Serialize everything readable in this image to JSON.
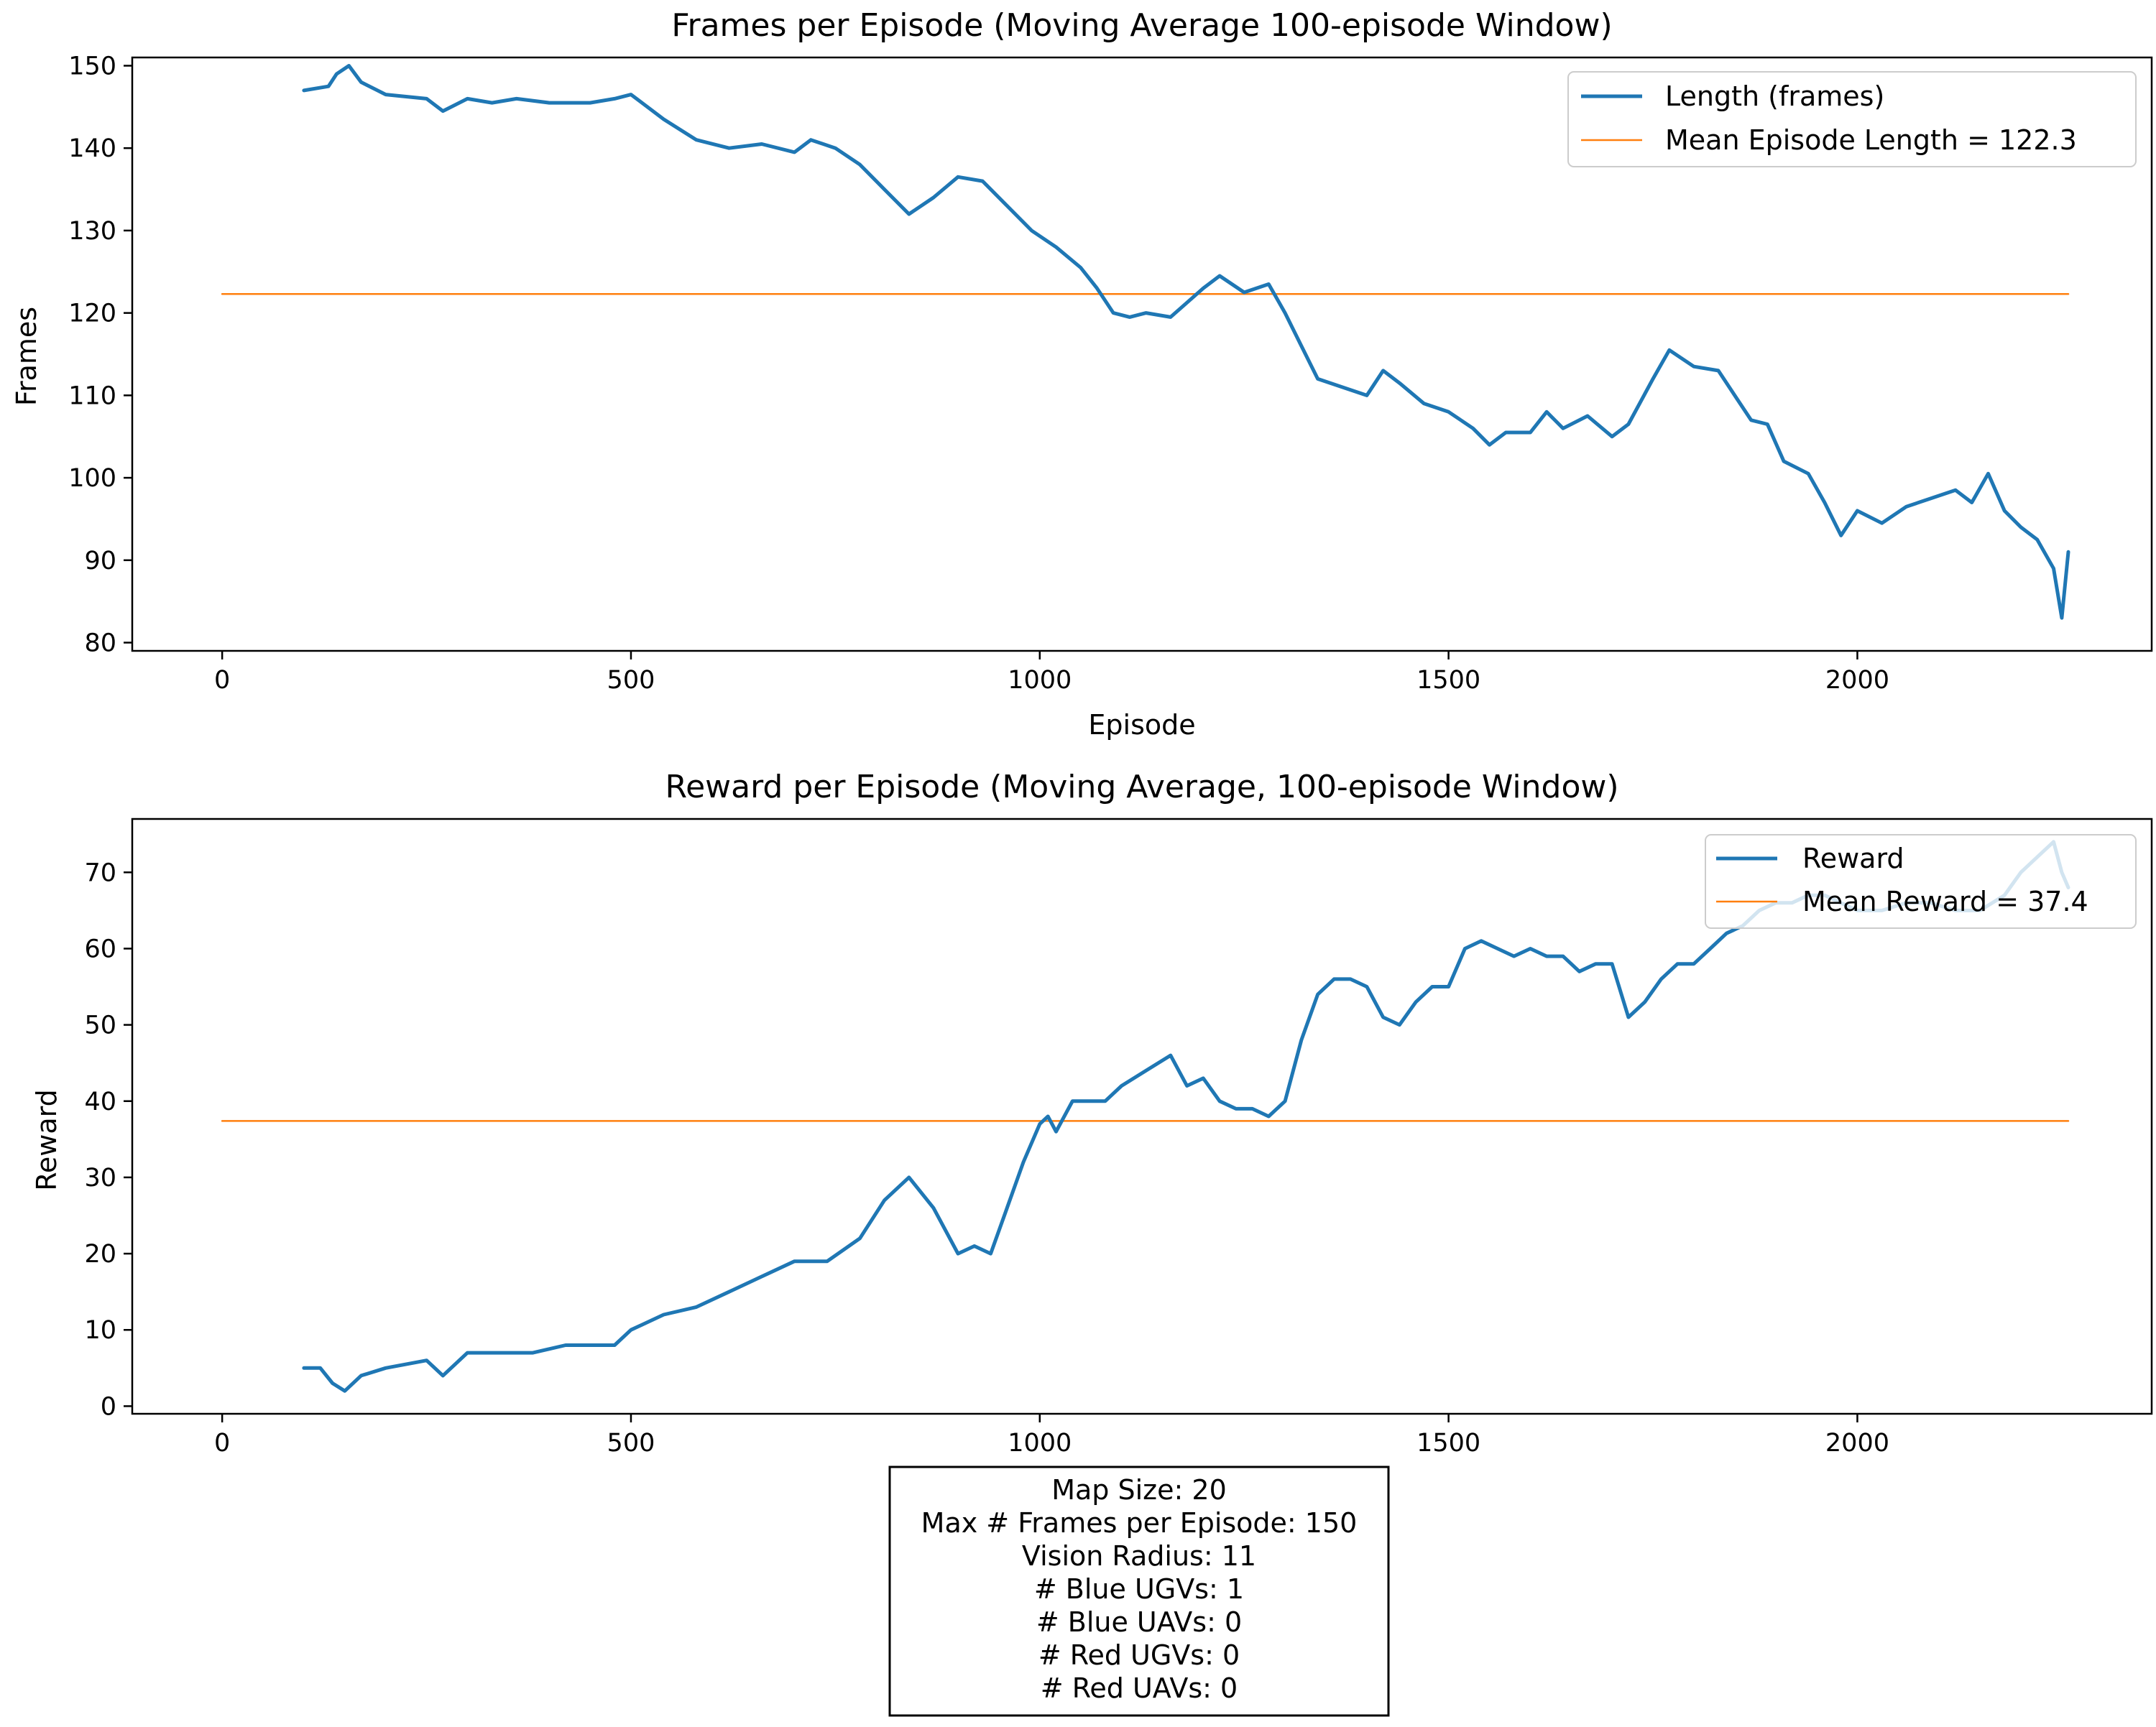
{
  "colors": {
    "series": "#1f77b4",
    "mean": "#ff7f0e",
    "axes": "#000000",
    "background": "#ffffff"
  },
  "chart_data": [
    {
      "type": "line",
      "title": "Frames per Episode (Moving Average 100-episode Window)",
      "xlabel": "Episode",
      "ylabel": "Frames",
      "xlim": [
        -110,
        2360
      ],
      "ylim": [
        79,
        151
      ],
      "xticks": [
        "0",
        "500",
        "1000",
        "1500",
        "2000"
      ],
      "yticks": [
        "80",
        "90",
        "100",
        "110",
        "120",
        "130",
        "140",
        "150"
      ],
      "legend_position": "top-right",
      "grid": false,
      "series": [
        {
          "name": "Length (frames)",
          "x": [
            100,
            130,
            140,
            155,
            170,
            200,
            250,
            270,
            300,
            330,
            360,
            400,
            450,
            480,
            500,
            540,
            580,
            620,
            660,
            700,
            720,
            750,
            780,
            810,
            840,
            870,
            900,
            930,
            960,
            990,
            1020,
            1050,
            1070,
            1090,
            1110,
            1130,
            1160,
            1200,
            1220,
            1250,
            1280,
            1300,
            1320,
            1340,
            1370,
            1400,
            1420,
            1440,
            1470,
            1500,
            1530,
            1550,
            1570,
            1600,
            1620,
            1640,
            1670,
            1700,
            1720,
            1750,
            1770,
            1800,
            1830,
            1850,
            1870,
            1890,
            1910,
            1940,
            1960,
            1980,
            2000,
            2030,
            2060,
            2090,
            2120,
            2140,
            2160,
            2180,
            2200,
            2220,
            2240,
            2250,
            2258
          ],
          "values": [
            147,
            147.5,
            149,
            150,
            148,
            146.5,
            146,
            144.5,
            146,
            145.5,
            146,
            145.5,
            145.5,
            146,
            146.5,
            143.5,
            141,
            140,
            140.5,
            139.5,
            141,
            140,
            138,
            135,
            132,
            134,
            136.5,
            136,
            133,
            130,
            128,
            125.5,
            123,
            120,
            119.5,
            120,
            119.5,
            123,
            124.5,
            122.5,
            123.5,
            120,
            116,
            112,
            111,
            110,
            113,
            111.5,
            109,
            108,
            106,
            104,
            105.5,
            105.5,
            108,
            106,
            107.5,
            105,
            106.5,
            112,
            115.5,
            113.5,
            113,
            110,
            107,
            106.5,
            102,
            100.5,
            97,
            93,
            96,
            94.5,
            96.5,
            97.5,
            98.5,
            97,
            100.5,
            96,
            94,
            92.5,
            89,
            83,
            91
          ]
        },
        {
          "name": "Mean Episode Length = 122.3",
          "x": [
            0,
            2258
          ],
          "values": [
            122.3,
            122.3
          ]
        }
      ]
    },
    {
      "type": "line",
      "title": "Reward per Episode (Moving Average, 100-episode Window)",
      "xlabel": "",
      "ylabel": "Reward",
      "xlim": [
        -110,
        2360
      ],
      "ylim": [
        -1,
        77
      ],
      "xticks": [
        "0",
        "500",
        "1000",
        "1500",
        "2000"
      ],
      "yticks": [
        "0",
        "10",
        "20",
        "30",
        "40",
        "50",
        "60",
        "70"
      ],
      "legend_position": "top-right",
      "grid": false,
      "series": [
        {
          "name": "Reward",
          "x": [
            100,
            120,
            135,
            150,
            170,
            200,
            250,
            270,
            300,
            340,
            380,
            420,
            450,
            480,
            500,
            540,
            580,
            620,
            660,
            700,
            740,
            780,
            810,
            840,
            870,
            900,
            920,
            940,
            960,
            980,
            1000,
            1010,
            1020,
            1040,
            1060,
            1080,
            1100,
            1130,
            1160,
            1180,
            1200,
            1220,
            1240,
            1260,
            1280,
            1300,
            1320,
            1340,
            1360,
            1380,
            1400,
            1420,
            1440,
            1460,
            1480,
            1500,
            1520,
            1540,
            1560,
            1580,
            1600,
            1620,
            1640,
            1660,
            1680,
            1700,
            1720,
            1740,
            1760,
            1780,
            1800,
            1820,
            1840,
            1860,
            1880,
            1900,
            1920,
            1940,
            1960,
            1980,
            2000,
            2030,
            2060,
            2090,
            2120,
            2150,
            2180,
            2200,
            2220,
            2240,
            2250,
            2258
          ],
          "values": [
            5,
            5,
            3,
            2,
            4,
            5,
            6,
            4,
            7,
            7,
            7,
            8,
            8,
            8,
            10,
            12,
            13,
            15,
            17,
            19,
            19,
            22,
            27,
            30,
            26,
            20,
            21,
            20,
            26,
            32,
            37,
            38,
            36,
            40,
            40,
            40,
            42,
            44,
            46,
            42,
            43,
            40,
            39,
            39,
            38,
            40,
            48,
            54,
            56,
            56,
            55,
            51,
            50,
            53,
            55,
            55,
            60,
            61,
            60,
            59,
            60,
            59,
            59,
            57,
            58,
            58,
            51,
            53,
            56,
            58,
            58,
            60,
            62,
            63,
            65,
            66,
            66,
            67,
            67,
            66,
            65,
            65,
            66,
            66,
            65,
            65,
            67,
            70,
            72,
            74,
            70,
            68
          ]
        },
        {
          "name": "Mean Reward = 37.4",
          "x": [
            0,
            2258
          ],
          "values": [
            37.4,
            37.4
          ]
        }
      ]
    }
  ],
  "info_box": {
    "lines": [
      "Map Size: 20",
      "Max # Frames per Episode: 150",
      "Vision Radius: 11",
      "# Blue UGVs: 1",
      "# Blue UAVs: 0",
      "# Red UGVs: 0",
      "# Red UAVs: 0"
    ]
  }
}
